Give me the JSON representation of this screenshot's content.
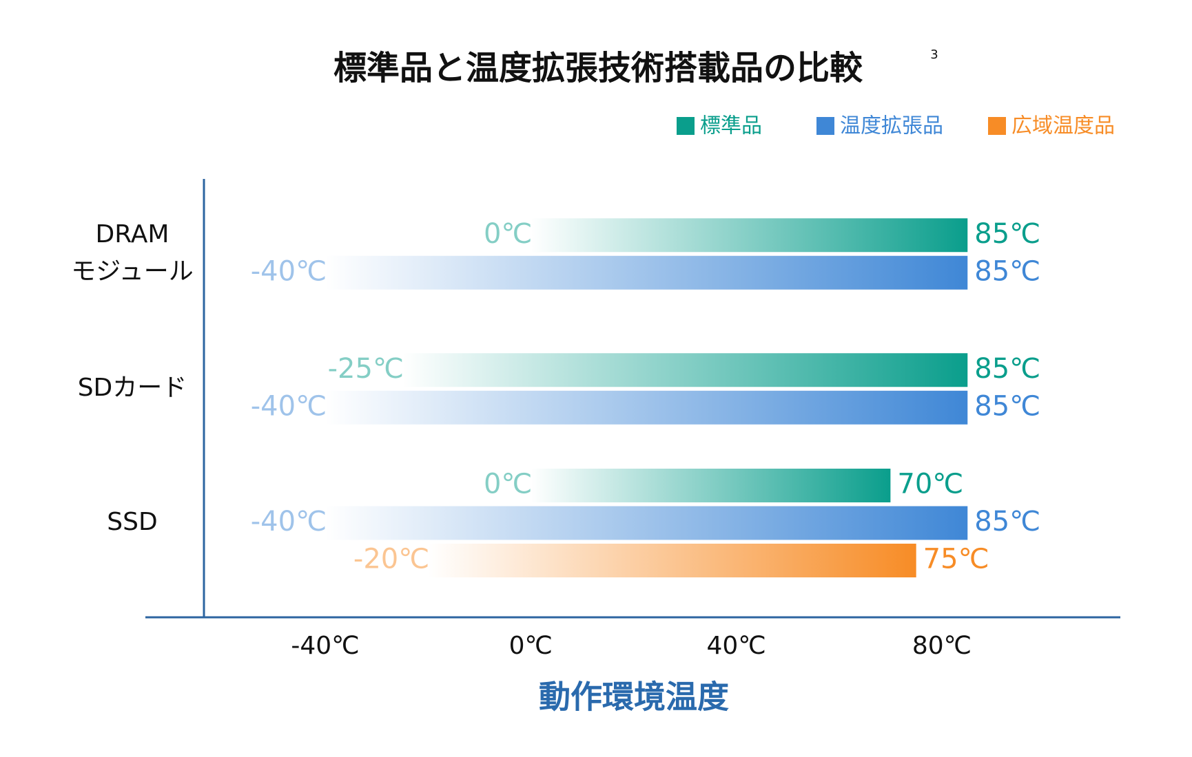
{
  "chart_data": {
    "type": "range-bar",
    "title": "標準品と温度拡張技術搭載品の比較",
    "title_note": "3",
    "xlabel": "動作環境温度",
    "categories": [
      [
        "DRAM",
        "モジュール"
      ],
      [
        "SDカード"
      ],
      [
        "SSD"
      ]
    ],
    "series": [
      {
        "name": "標準品",
        "color": "#0a9e8c",
        "values": [
          [
            0,
            85
          ],
          [
            -25,
            85
          ],
          [
            0,
            70
          ]
        ],
        "value_labels": [
          [
            "0℃",
            "85℃"
          ],
          [
            "-25℃",
            "85℃"
          ],
          [
            "0℃",
            "70℃"
          ]
        ]
      },
      {
        "name": "温度拡張品",
        "color": "#3f87d6",
        "values": [
          [
            -40,
            85
          ],
          [
            -40,
            85
          ],
          [
            -40,
            85
          ]
        ],
        "value_labels": [
          [
            "-40℃",
            "85℃"
          ],
          [
            "-40℃",
            "85℃"
          ],
          [
            "-40℃",
            "85℃"
          ]
        ]
      },
      {
        "name": "広域温度品",
        "color": "#f78c26",
        "values": [
          null,
          null,
          [
            -20,
            75
          ]
        ],
        "value_labels": [
          null,
          null,
          [
            "-20℃",
            "75℃"
          ]
        ]
      }
    ],
    "xlim": [
      -75,
      115
    ],
    "xticks": [
      {
        "value": -40,
        "label": "-40℃"
      },
      {
        "value": 0,
        "label": "0℃"
      },
      {
        "value": 40,
        "label": "40℃"
      },
      {
        "value": 80,
        "label": "80℃"
      }
    ],
    "legend": "top-right"
  }
}
